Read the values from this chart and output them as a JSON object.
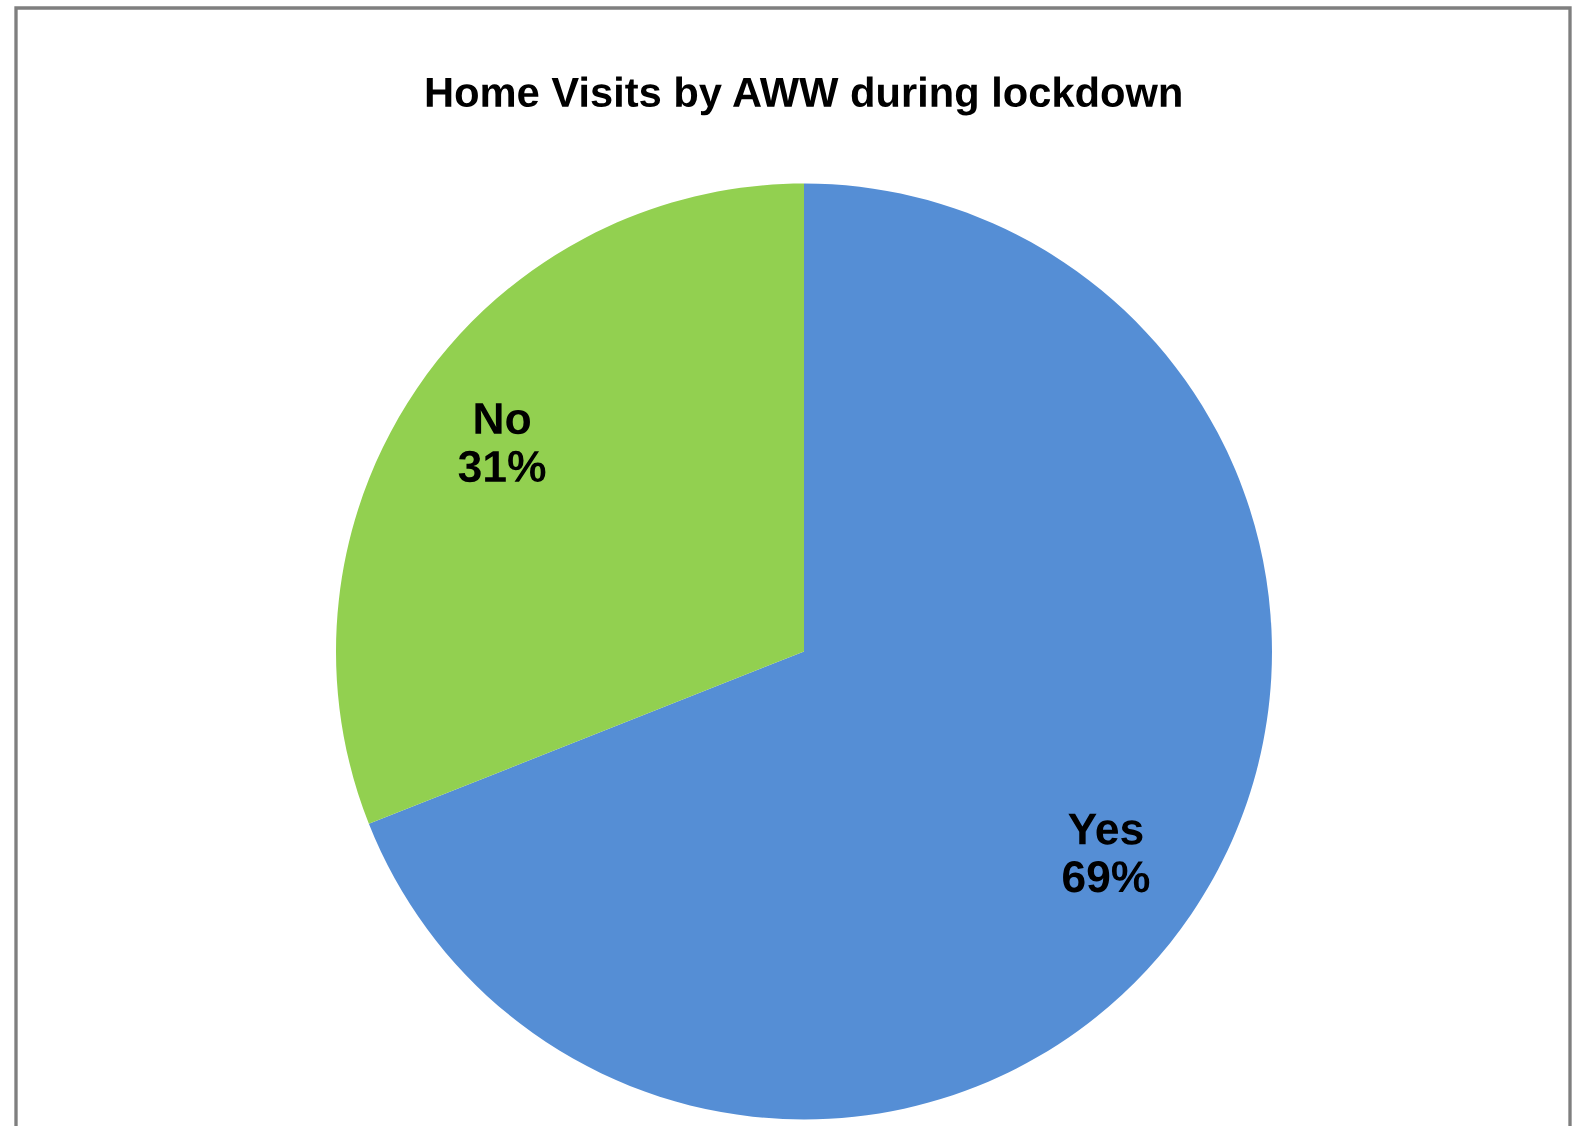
{
  "chart_data": {
    "type": "pie",
    "title": "Home Visits by AWW during lockdown",
    "categories": [
      "Yes",
      "No"
    ],
    "values": [
      69,
      31
    ],
    "value_labels": [
      "69%",
      "31%"
    ],
    "colors": [
      "#558ed5",
      "#92d050"
    ],
    "legend": false
  }
}
